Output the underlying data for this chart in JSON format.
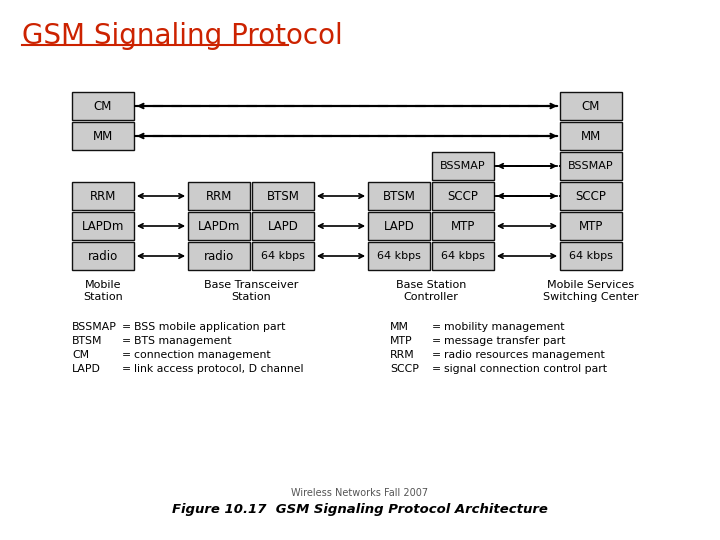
{
  "title": "GSM Signaling Protocol",
  "title_color": "#cc2200",
  "title_fontsize": 20,
  "bg_color": "#ffffff",
  "box_fill": "#cccccc",
  "box_edge": "#111111",
  "figure_caption": "Figure 10.17  GSM Signaling Protocol Architecture",
  "watermark": "Wireless Networks Fall 2007",
  "legend_left": [
    [
      "BSSMAP",
      "=",
      "BSS mobile application part"
    ],
    [
      "BTSM",
      "=",
      "BTS management"
    ],
    [
      "CM",
      "=",
      "connection management"
    ],
    [
      "LAPD",
      "=",
      "link access protocol, D channel"
    ]
  ],
  "legend_right": [
    [
      "MM",
      "=",
      "mobility management"
    ],
    [
      "MTP",
      "=",
      "message transfer part"
    ],
    [
      "RRM",
      "=",
      "radio resources management"
    ],
    [
      "SCCP",
      "=",
      "signal connection control part"
    ]
  ],
  "entity_labels": [
    "Mobile\nStation",
    "Base Transceiver\nStation",
    "Base Station\nController",
    "Mobile Services\nSwitching Center"
  ]
}
